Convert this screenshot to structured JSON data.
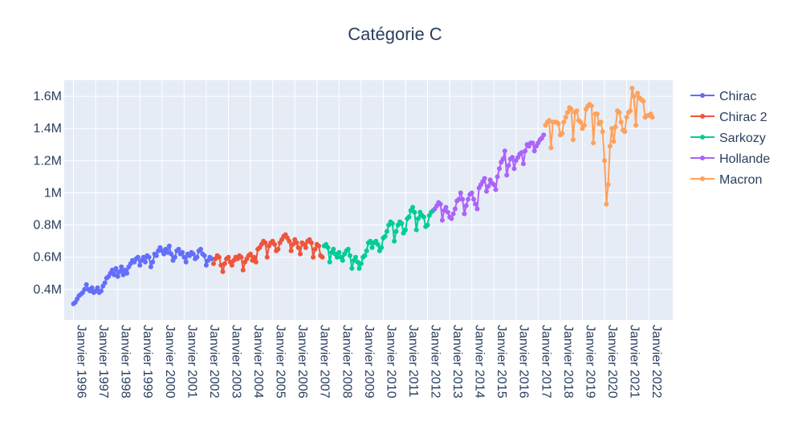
{
  "chart_data": {
    "type": "line",
    "title": "Catégorie C",
    "xlabel": "",
    "ylabel": "",
    "x_range": [
      "1995-08-01",
      "2023-02-01"
    ],
    "ylim": [
      210000,
      1700000
    ],
    "y_ticks": [
      {
        "value": 400000,
        "label": "0.4M"
      },
      {
        "value": 600000,
        "label": "0.6M"
      },
      {
        "value": 800000,
        "label": "0.8M"
      },
      {
        "value": 1000000,
        "label": "1M"
      },
      {
        "value": 1200000,
        "label": "1.2M"
      },
      {
        "value": 1400000,
        "label": "1.4M"
      },
      {
        "value": 1600000,
        "label": "1.6M"
      }
    ],
    "x_ticks": [
      {
        "date": "1996-01-01",
        "label": "Janvier 1996"
      },
      {
        "date": "1997-01-01",
        "label": "Janvier 1997"
      },
      {
        "date": "1998-01-01",
        "label": "Janvier 1998"
      },
      {
        "date": "1999-01-01",
        "label": "Janvier 1999"
      },
      {
        "date": "2000-01-01",
        "label": "Janvier 2000"
      },
      {
        "date": "2001-01-01",
        "label": "Janvier 2001"
      },
      {
        "date": "2002-01-01",
        "label": "Janvier 2002"
      },
      {
        "date": "2003-01-01",
        "label": "Janvier 2003"
      },
      {
        "date": "2004-01-01",
        "label": "Janvier 2004"
      },
      {
        "date": "2005-01-01",
        "label": "Janvier 2005"
      },
      {
        "date": "2006-01-01",
        "label": "Janvier 2006"
      },
      {
        "date": "2007-01-01",
        "label": "Janvier 2007"
      },
      {
        "date": "2008-01-01",
        "label": "Janvier 2008"
      },
      {
        "date": "2009-01-01",
        "label": "Janvier 2009"
      },
      {
        "date": "2010-01-01",
        "label": "Janvier 2010"
      },
      {
        "date": "2011-01-01",
        "label": "Janvier 2011"
      },
      {
        "date": "2012-01-01",
        "label": "Janvier 2012"
      },
      {
        "date": "2013-01-01",
        "label": "Janvier 2013"
      },
      {
        "date": "2014-01-01",
        "label": "Janvier 2014"
      },
      {
        "date": "2015-01-01",
        "label": "Janvier 2015"
      },
      {
        "date": "2016-01-01",
        "label": "Janvier 2016"
      },
      {
        "date": "2017-01-01",
        "label": "Janvier 2017"
      },
      {
        "date": "2018-01-01",
        "label": "Janvier 2018"
      },
      {
        "date": "2019-01-01",
        "label": "Janvier 2019"
      },
      {
        "date": "2020-01-01",
        "label": "Janvier 2020"
      },
      {
        "date": "2021-01-01",
        "label": "Janvier 2021"
      },
      {
        "date": "2022-01-01",
        "label": "Janvier 2022"
      }
    ],
    "grid": true,
    "legend_position": "right",
    "background_color": "#e5ecf6",
    "series": [
      {
        "name": "Chirac",
        "color": "#636efa",
        "x": [
          "1996-01-01",
          "1996-02-01",
          "1996-03-01",
          "1996-04-01",
          "1996-05-01",
          "1996-06-01",
          "1996-07-01",
          "1996-08-01",
          "1996-09-01",
          "1996-10-01",
          "1996-11-01",
          "1996-12-01",
          "1997-01-01",
          "1997-02-01",
          "1997-03-01",
          "1997-04-01",
          "1997-05-01",
          "1997-06-01",
          "1997-07-01",
          "1997-08-01",
          "1997-09-01",
          "1997-10-01",
          "1997-11-01",
          "1997-12-01",
          "1998-01-01",
          "1998-02-01",
          "1998-03-01",
          "1998-04-01",
          "1998-05-01",
          "1998-06-01",
          "1998-07-01",
          "1998-08-01",
          "1998-09-01",
          "1998-10-01",
          "1998-11-01",
          "1998-12-01",
          "1999-01-01",
          "1999-02-01",
          "1999-03-01",
          "1999-04-01",
          "1999-05-01",
          "1999-06-01",
          "1999-07-01",
          "1999-08-01",
          "1999-09-01",
          "1999-10-01",
          "1999-11-01",
          "1999-12-01",
          "2000-01-01",
          "2000-02-01",
          "2000-03-01",
          "2000-04-01",
          "2000-05-01",
          "2000-06-01",
          "2000-07-01",
          "2000-08-01",
          "2000-09-01",
          "2000-10-01",
          "2000-11-01",
          "2000-12-01",
          "2001-01-01",
          "2001-02-01",
          "2001-03-01",
          "2001-04-01",
          "2001-05-01",
          "2001-06-01",
          "2001-07-01",
          "2001-08-01",
          "2001-09-01",
          "2001-10-01",
          "2001-11-01",
          "2001-12-01",
          "2002-01-01",
          "2002-02-01",
          "2002-03-01",
          "2002-04-01"
        ],
        "y": [
          310000,
          320000,
          340000,
          360000,
          370000,
          380000,
          400000,
          430000,
          400000,
          390000,
          410000,
          380000,
          390000,
          410000,
          380000,
          390000,
          420000,
          440000,
          470000,
          480000,
          500000,
          520000,
          490000,
          530000,
          480000,
          510000,
          540000,
          490000,
          520000,
          500000,
          540000,
          560000,
          580000,
          570000,
          590000,
          600000,
          550000,
          580000,
          600000,
          570000,
          610000,
          600000,
          540000,
          570000,
          620000,
          610000,
          640000,
          660000,
          640000,
          620000,
          650000,
          630000,
          670000,
          620000,
          580000,
          600000,
          640000,
          650000,
          620000,
          630000,
          600000,
          570000,
          620000,
          610000,
          630000,
          620000,
          590000,
          600000,
          640000,
          650000,
          620000,
          610000,
          550000,
          580000,
          600000,
          590000
        ]
      },
      {
        "name": "Chirac 2",
        "color": "#ef553b",
        "x": [
          "2002-05-01",
          "2002-06-01",
          "2002-07-01",
          "2002-08-01",
          "2002-09-01",
          "2002-10-01",
          "2002-11-01",
          "2002-12-01",
          "2003-01-01",
          "2003-02-01",
          "2003-03-01",
          "2003-04-01",
          "2003-05-01",
          "2003-06-01",
          "2003-07-01",
          "2003-08-01",
          "2003-09-01",
          "2003-10-01",
          "2003-11-01",
          "2003-12-01",
          "2004-01-01",
          "2004-02-01",
          "2004-03-01",
          "2004-04-01",
          "2004-05-01",
          "2004-06-01",
          "2004-07-01",
          "2004-08-01",
          "2004-09-01",
          "2004-10-01",
          "2004-11-01",
          "2004-12-01",
          "2005-01-01",
          "2005-02-01",
          "2005-03-01",
          "2005-04-01",
          "2005-05-01",
          "2005-06-01",
          "2005-07-01",
          "2005-08-01",
          "2005-09-01",
          "2005-10-01",
          "2005-11-01",
          "2005-12-01",
          "2006-01-01",
          "2006-02-01",
          "2006-03-01",
          "2006-04-01",
          "2006-05-01",
          "2006-06-01",
          "2006-07-01",
          "2006-08-01",
          "2006-09-01",
          "2006-10-01",
          "2006-11-01",
          "2006-12-01",
          "2007-01-01",
          "2007-02-01",
          "2007-03-01",
          "2007-04-01"
        ],
        "y": [
          560000,
          590000,
          610000,
          600000,
          550000,
          510000,
          560000,
          590000,
          600000,
          570000,
          550000,
          580000,
          600000,
          590000,
          610000,
          600000,
          520000,
          570000,
          590000,
          610000,
          620000,
          580000,
          600000,
          570000,
          650000,
          660000,
          680000,
          700000,
          690000,
          600000,
          670000,
          690000,
          700000,
          680000,
          640000,
          650000,
          690000,
          710000,
          730000,
          740000,
          720000,
          700000,
          640000,
          680000,
          710000,
          690000,
          660000,
          620000,
          690000,
          680000,
          660000,
          700000,
          710000,
          690000,
          600000,
          650000,
          680000,
          670000,
          610000,
          600000
        ]
      },
      {
        "name": "Sarkozy",
        "color": "#00cc96",
        "x": [
          "2007-05-01",
          "2007-06-01",
          "2007-07-01",
          "2007-08-01",
          "2007-09-01",
          "2007-10-01",
          "2007-11-01",
          "2007-12-01",
          "2008-01-01",
          "2008-02-01",
          "2008-03-01",
          "2008-04-01",
          "2008-05-01",
          "2008-06-01",
          "2008-07-01",
          "2008-08-01",
          "2008-09-01",
          "2008-10-01",
          "2008-11-01",
          "2008-12-01",
          "2009-01-01",
          "2009-02-01",
          "2009-03-01",
          "2009-04-01",
          "2009-05-01",
          "2009-06-01",
          "2009-07-01",
          "2009-08-01",
          "2009-09-01",
          "2009-10-01",
          "2009-11-01",
          "2009-12-01",
          "2010-01-01",
          "2010-02-01",
          "2010-03-01",
          "2010-04-01",
          "2010-05-01",
          "2010-06-01",
          "2010-07-01",
          "2010-08-01",
          "2010-09-01",
          "2010-10-01",
          "2010-11-01",
          "2010-12-01",
          "2011-01-01",
          "2011-02-01",
          "2011-03-01",
          "2011-04-01",
          "2011-05-01",
          "2011-06-01",
          "2011-07-01",
          "2011-08-01",
          "2011-09-01",
          "2011-10-01",
          "2011-11-01",
          "2011-12-01",
          "2012-01-01",
          "2012-02-01",
          "2012-03-01",
          "2012-04-01"
        ],
        "y": [
          670000,
          680000,
          660000,
          570000,
          630000,
          650000,
          620000,
          600000,
          630000,
          600000,
          580000,
          620000,
          640000,
          650000,
          610000,
          530000,
          580000,
          600000,
          570000,
          530000,
          560000,
          600000,
          610000,
          640000,
          690000,
          700000,
          660000,
          690000,
          700000,
          680000,
          640000,
          660000,
          720000,
          730000,
          760000,
          800000,
          820000,
          810000,
          700000,
          760000,
          800000,
          820000,
          810000,
          750000,
          770000,
          840000,
          850000,
          890000,
          910000,
          880000,
          770000,
          840000,
          880000,
          860000,
          850000,
          790000,
          800000,
          860000,
          880000,
          890000
        ]
      },
      {
        "name": "Hollande",
        "color": "#ab63fa",
        "x": [
          "2012-05-01",
          "2012-06-01",
          "2012-07-01",
          "2012-08-01",
          "2012-09-01",
          "2012-10-01",
          "2012-11-01",
          "2012-12-01",
          "2013-01-01",
          "2013-02-01",
          "2013-03-01",
          "2013-04-01",
          "2013-05-01",
          "2013-06-01",
          "2013-07-01",
          "2013-08-01",
          "2013-09-01",
          "2013-10-01",
          "2013-11-01",
          "2013-12-01",
          "2014-01-01",
          "2014-02-01",
          "2014-03-01",
          "2014-04-01",
          "2014-05-01",
          "2014-06-01",
          "2014-07-01",
          "2014-08-01",
          "2014-09-01",
          "2014-10-01",
          "2014-11-01",
          "2014-12-01",
          "2015-01-01",
          "2015-02-01",
          "2015-03-01",
          "2015-04-01",
          "2015-05-01",
          "2015-06-01",
          "2015-07-01",
          "2015-08-01",
          "2015-09-01",
          "2015-10-01",
          "2015-11-01",
          "2015-12-01",
          "2016-01-01",
          "2016-02-01",
          "2016-03-01",
          "2016-04-01",
          "2016-05-01",
          "2016-06-01",
          "2016-07-01",
          "2016-08-01",
          "2016-09-01",
          "2016-10-01",
          "2016-11-01",
          "2016-12-01",
          "2017-01-01",
          "2017-02-01",
          "2017-03-01",
          "2017-04-01"
        ],
        "y": [
          900000,
          920000,
          940000,
          930000,
          830000,
          890000,
          910000,
          880000,
          850000,
          840000,
          870000,
          900000,
          950000,
          960000,
          1000000,
          960000,
          870000,
          920000,
          960000,
          990000,
          1000000,
          960000,
          930000,
          900000,
          1030000,
          1050000,
          1070000,
          1090000,
          1010000,
          1040000,
          1080000,
          1060000,
          1050000,
          1020000,
          1100000,
          1150000,
          1190000,
          1210000,
          1260000,
          1110000,
          1170000,
          1210000,
          1220000,
          1150000,
          1200000,
          1220000,
          1240000,
          1250000,
          1180000,
          1260000,
          1300000,
          1290000,
          1310000,
          1310000,
          1260000,
          1290000,
          1310000,
          1330000,
          1340000,
          1360000
        ]
      },
      {
        "name": "Macron",
        "color": "#ffa15a",
        "x": [
          "2017-05-01",
          "2017-06-01",
          "2017-07-01",
          "2017-08-01",
          "2017-09-01",
          "2017-10-01",
          "2017-11-01",
          "2017-12-01",
          "2018-01-01",
          "2018-02-01",
          "2018-03-01",
          "2018-04-01",
          "2018-05-01",
          "2018-06-01",
          "2018-07-01",
          "2018-08-01",
          "2018-09-01",
          "2018-10-01",
          "2018-11-01",
          "2018-12-01",
          "2019-01-01",
          "2019-02-01",
          "2019-03-01",
          "2019-04-01",
          "2019-05-01",
          "2019-06-01",
          "2019-07-01",
          "2019-08-01",
          "2019-09-01",
          "2019-10-01",
          "2019-11-01",
          "2019-12-01",
          "2020-01-01",
          "2020-02-01",
          "2020-03-01",
          "2020-04-01",
          "2020-05-01",
          "2020-06-01",
          "2020-07-01",
          "2020-08-01",
          "2020-09-01",
          "2020-10-01",
          "2020-11-01",
          "2020-12-01",
          "2021-01-01",
          "2021-02-01",
          "2021-03-01",
          "2021-04-01",
          "2021-05-01",
          "2021-06-01",
          "2021-07-01",
          "2021-08-01",
          "2021-09-01",
          "2021-10-01",
          "2021-11-01",
          "2021-12-01",
          "2022-01-01",
          "2022-02-01",
          "2022-03-01"
        ],
        "y": [
          1420000,
          1440000,
          1450000,
          1280000,
          1440000,
          1440000,
          1440000,
          1430000,
          1360000,
          1370000,
          1440000,
          1470000,
          1500000,
          1530000,
          1520000,
          1330000,
          1500000,
          1510000,
          1450000,
          1440000,
          1400000,
          1420000,
          1520000,
          1540000,
          1550000,
          1540000,
          1310000,
          1490000,
          1490000,
          1430000,
          1440000,
          1380000,
          1200000,
          930000,
          1050000,
          1290000,
          1400000,
          1320000,
          1410000,
          1510000,
          1500000,
          1440000,
          1390000,
          1380000,
          1470000,
          1500000,
          1510000,
          1650000,
          1600000,
          1420000,
          1620000,
          1590000,
          1580000,
          1570000,
          1470000,
          1480000,
          1480000,
          1490000,
          1470000
        ]
      }
    ]
  }
}
